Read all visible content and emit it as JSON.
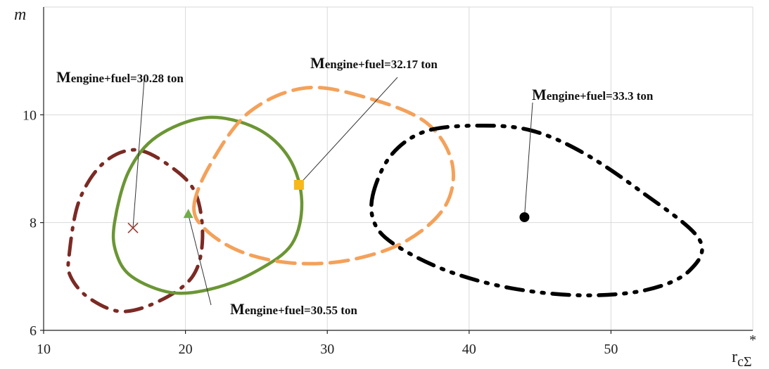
{
  "chart_data": {
    "type": "scatter",
    "xlabel": "r",
    "xlabel_sub": "cΣ",
    "xlabel_sup": "*",
    "ylabel": "m",
    "xlim": [
      10,
      60
    ],
    "ylim": [
      6,
      12
    ],
    "xticks": [
      "10",
      "20",
      "30",
      "40",
      "50"
    ],
    "yticks": [
      "6",
      "8",
      "10"
    ],
    "grid": true,
    "series": [
      {
        "color": "#7b2a24",
        "line_style": "dash-dot",
        "center": {
          "x": 16.3,
          "y": 7.9,
          "marker": "x",
          "marker_color": "#9c3a2e"
        },
        "contour": [
          [
            11.8,
            7.4
          ],
          [
            12.5,
            8.4
          ],
          [
            14.2,
            9.1
          ],
          [
            16.5,
            9.35
          ],
          [
            18.9,
            9.05
          ],
          [
            20.7,
            8.55
          ],
          [
            21.2,
            7.7
          ],
          [
            20.5,
            7.0
          ],
          [
            18.2,
            6.55
          ],
          [
            15.5,
            6.35
          ],
          [
            13.2,
            6.6
          ],
          [
            11.9,
            7.0
          ]
        ],
        "annotation": "Mengine+fuel=30.28 ton"
      },
      {
        "color": "#6b9634",
        "line_style": "solid",
        "center": {
          "x": 20.2,
          "y": 8.15,
          "marker": "triangle",
          "marker_color": "#70ad47"
        },
        "contour": [
          [
            15.0,
            8.0
          ],
          [
            16.0,
            8.95
          ],
          [
            18.0,
            9.6
          ],
          [
            21.5,
            9.95
          ],
          [
            25.0,
            9.75
          ],
          [
            27.3,
            9.2
          ],
          [
            28.2,
            8.4
          ],
          [
            27.5,
            7.6
          ],
          [
            25.0,
            7.1
          ],
          [
            22.0,
            6.78
          ],
          [
            19.0,
            6.7
          ],
          [
            16.2,
            7.0
          ],
          [
            15.1,
            7.45
          ]
        ],
        "annotation": "Mengine+fuel=30.55 ton"
      },
      {
        "color": "#f4a15a",
        "line_style": "dashed",
        "center": {
          "x": 28.0,
          "y": 8.7,
          "marker": "square",
          "marker_color": "#f6b81a"
        },
        "contour": [
          [
            20.6,
            8.3
          ],
          [
            21.8,
            9.1
          ],
          [
            24.5,
            10.05
          ],
          [
            28.5,
            10.5
          ],
          [
            33.0,
            10.3
          ],
          [
            37.0,
            9.85
          ],
          [
            38.8,
            9.1
          ],
          [
            38.3,
            8.3
          ],
          [
            35.5,
            7.65
          ],
          [
            31.5,
            7.3
          ],
          [
            27.5,
            7.25
          ],
          [
            24.0,
            7.45
          ],
          [
            21.5,
            7.85
          ]
        ],
        "annotation": "Mengine+fuel=32.17 ton"
      },
      {
        "color": "#000000",
        "line_style": "dash-dot-dot",
        "center": {
          "x": 43.9,
          "y": 8.1,
          "marker": "circle",
          "marker_color": "#000000"
        },
        "contour": [
          [
            33.2,
            8.5
          ],
          [
            34.5,
            9.25
          ],
          [
            37.0,
            9.7
          ],
          [
            41.0,
            9.8
          ],
          [
            44.5,
            9.7
          ],
          [
            48.0,
            9.3
          ],
          [
            52.0,
            8.6
          ],
          [
            56.2,
            7.7
          ],
          [
            55.5,
            7.1
          ],
          [
            52.5,
            6.75
          ],
          [
            48.0,
            6.65
          ],
          [
            43.0,
            6.78
          ],
          [
            38.5,
            7.1
          ],
          [
            35.0,
            7.55
          ],
          [
            33.4,
            7.95
          ]
        ],
        "annotation": "Mengine+fuel=33.3 ton"
      }
    ]
  }
}
